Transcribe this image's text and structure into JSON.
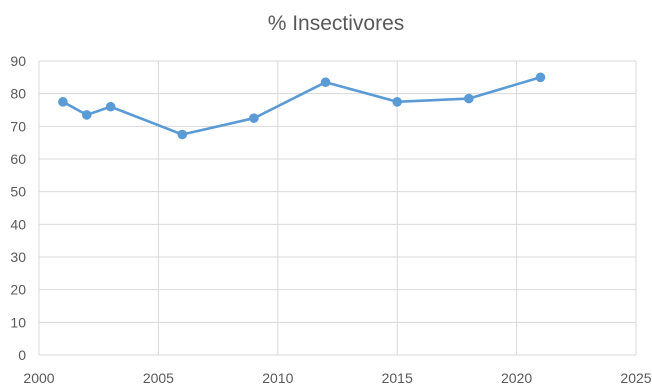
{
  "chart_data": {
    "type": "scatter",
    "title": "% Insectivores",
    "xlabel": "",
    "ylabel": "",
    "xlim": [
      2000,
      2025
    ],
    "ylim": [
      0,
      90
    ],
    "x_ticks": [
      2000,
      2005,
      2010,
      2015,
      2020,
      2025
    ],
    "y_ticks": [
      0,
      10,
      20,
      30,
      40,
      50,
      60,
      70,
      80,
      90
    ],
    "grid": true,
    "legend": "none",
    "series": [
      {
        "x": [
          2001,
          2002,
          2003,
          2006,
          2009,
          2012,
          2015,
          2018,
          2021
        ],
        "y": [
          77.5,
          73.5,
          76,
          67.5,
          72.5,
          83.5,
          77.5,
          78.5,
          85
        ],
        "color": "#5b9bd5",
        "lines": true,
        "markers": true
      }
    ]
  }
}
